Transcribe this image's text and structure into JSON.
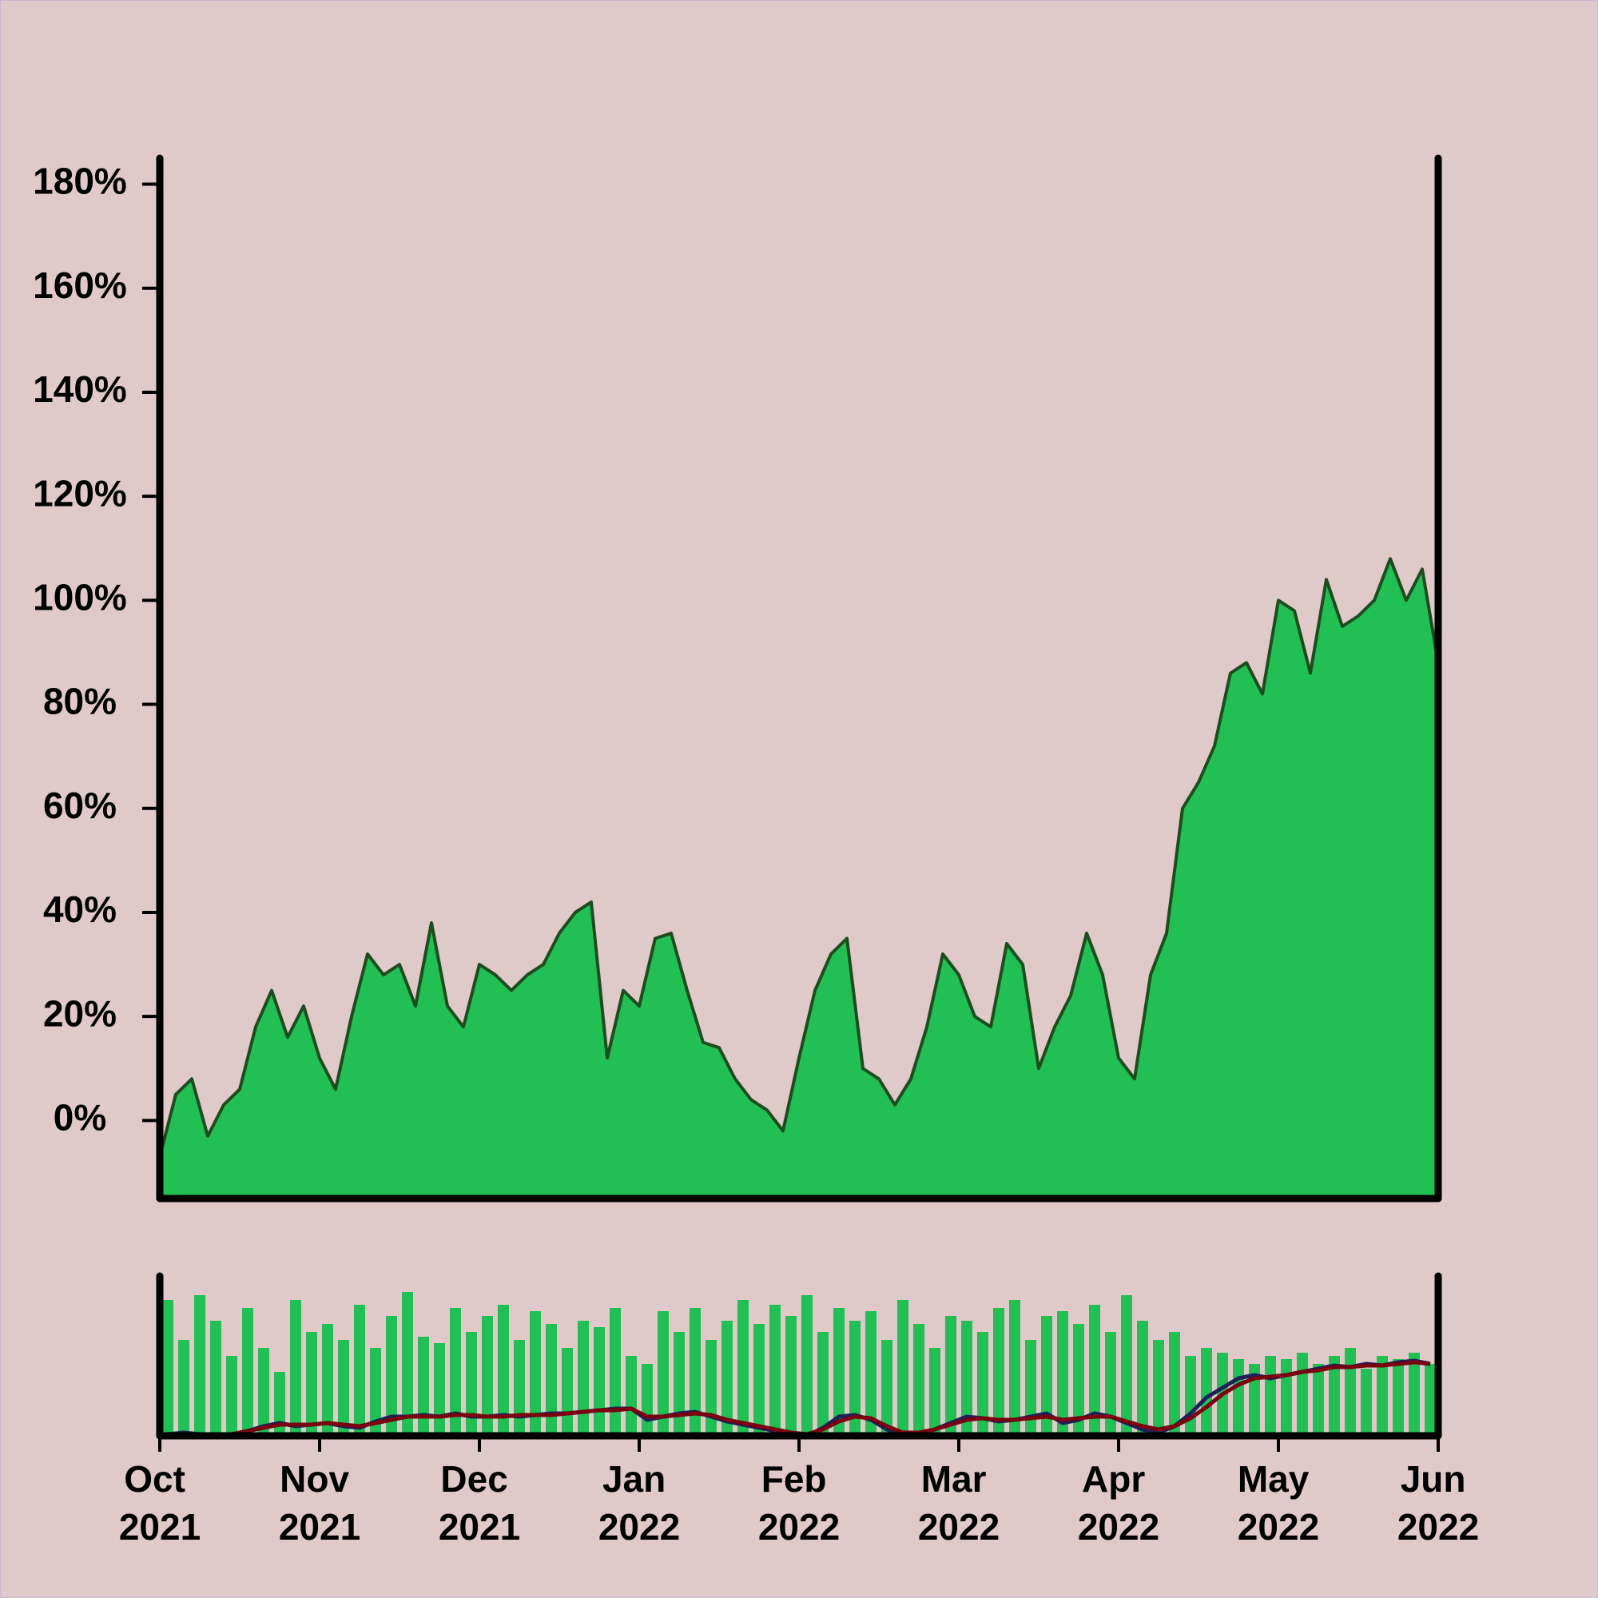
{
  "chart_data": [
    {
      "type": "area",
      "x": [
        0,
        0.1,
        0.2,
        0.3,
        0.4,
        0.5,
        0.6,
        0.7,
        0.8,
        0.9,
        1,
        1.1,
        1.2,
        1.3,
        1.4,
        1.5,
        1.6,
        1.7,
        1.8,
        1.9,
        2,
        2.1,
        2.2,
        2.3,
        2.4,
        2.5,
        2.6,
        2.7,
        2.8,
        2.9,
        3,
        3.1,
        3.2,
        3.3,
        3.4,
        3.5,
        3.6,
        3.7,
        3.8,
        3.9,
        4,
        4.1,
        4.2,
        4.3,
        4.4,
        4.5,
        4.6,
        4.7,
        4.8,
        4.9,
        5,
        5.1,
        5.2,
        5.3,
        5.4,
        5.5,
        5.6,
        5.7,
        5.8,
        5.9,
        6,
        6.1,
        6.2,
        6.3,
        6.4,
        6.5,
        6.6,
        6.7,
        6.8,
        6.9,
        7,
        7.1,
        7.2,
        7.3,
        7.4,
        7.5,
        7.6,
        7.7,
        7.8,
        7.9,
        8
      ],
      "values": [
        -7,
        5,
        8,
        -3,
        3,
        6,
        18,
        25,
        16,
        22,
        12,
        6,
        20,
        32,
        28,
        30,
        22,
        38,
        22,
        18,
        30,
        28,
        25,
        28,
        30,
        36,
        40,
        42,
        12,
        25,
        22,
        35,
        36,
        25,
        15,
        14,
        8,
        4,
        2,
        -2,
        12,
        25,
        32,
        35,
        10,
        8,
        3,
        8,
        18,
        32,
        28,
        20,
        18,
        34,
        30,
        10,
        18,
        24,
        36,
        28,
        12,
        8,
        28,
        36,
        60,
        65,
        72,
        86,
        88,
        82,
        100,
        98,
        86,
        104,
        95,
        97,
        100,
        108,
        100,
        106,
        88
      ],
      "color": "#22bf55",
      "line_color": "#1d4d1f",
      "xlim": [
        0,
        8
      ],
      "ylim": [
        -15,
        185
      ],
      "yticks": [
        {
          "value": 0,
          "label": "0%"
        },
        {
          "value": 20,
          "label": "20%"
        },
        {
          "value": 40,
          "label": "40%"
        },
        {
          "value": 60,
          "label": "60%"
        },
        {
          "value": 80,
          "label": "80%"
        },
        {
          "value": 100,
          "label": "100%"
        },
        {
          "value": 120,
          "label": "120%"
        },
        {
          "value": 140,
          "label": "140%"
        },
        {
          "value": 160,
          "label": "160%"
        },
        {
          "value": 180,
          "label": "180%"
        }
      ]
    },
    {
      "type": "bar",
      "x": [
        0.05,
        0.15,
        0.25,
        0.35,
        0.45,
        0.55,
        0.65,
        0.75,
        0.85,
        0.95,
        1.05,
        1.15,
        1.25,
        1.35,
        1.45,
        1.55,
        1.65,
        1.75,
        1.85,
        1.95,
        2.05,
        2.15,
        2.25,
        2.35,
        2.45,
        2.55,
        2.65,
        2.75,
        2.85,
        2.95,
        3.05,
        3.15,
        3.25,
        3.35,
        3.45,
        3.55,
        3.65,
        3.75,
        3.85,
        3.95,
        4.05,
        4.15,
        4.25,
        4.35,
        4.45,
        4.55,
        4.65,
        4.75,
        4.85,
        4.95,
        5.05,
        5.15,
        5.25,
        5.35,
        5.45,
        5.55,
        5.65,
        5.75,
        5.85,
        5.95,
        6.05,
        6.15,
        6.25,
        6.35,
        6.45,
        6.55,
        6.65,
        6.75,
        6.85,
        6.95,
        7.05,
        7.15,
        7.25,
        7.35,
        7.45,
        7.55,
        7.65,
        7.75,
        7.85,
        7.95
      ],
      "values": [
        85,
        60,
        88,
        72,
        50,
        80,
        55,
        40,
        85,
        65,
        70,
        60,
        82,
        55,
        75,
        90,
        62,
        58,
        80,
        65,
        75,
        82,
        60,
        78,
        70,
        55,
        72,
        68,
        80,
        50,
        45,
        78,
        65,
        80,
        60,
        72,
        85,
        70,
        82,
        75,
        88,
        65,
        80,
        72,
        78,
        60,
        85,
        70,
        55,
        75,
        72,
        65,
        80,
        85,
        60,
        75,
        78,
        70,
        82,
        65,
        88,
        72,
        60,
        65,
        50,
        55,
        52,
        48,
        45,
        50,
        48,
        52,
        45,
        50,
        55,
        42,
        50,
        48,
        52,
        45
      ],
      "color": "#22bf55",
      "series": [
        {
          "color": "#1f1f5a",
          "values": [
            1,
            2,
            1,
            0,
            1,
            3,
            6,
            8,
            6,
            7,
            8,
            6,
            5,
            9,
            12,
            12,
            13,
            12,
            14,
            12,
            12,
            13,
            12,
            13,
            14,
            14,
            15,
            16,
            17,
            17,
            10,
            12,
            14,
            15,
            12,
            9,
            7,
            5,
            3,
            1,
            0,
            5,
            12,
            13,
            10,
            4,
            0,
            1,
            4,
            8,
            12,
            11,
            9,
            10,
            12,
            14,
            8,
            10,
            14,
            12,
            8,
            4,
            2,
            6,
            14,
            24,
            30,
            36,
            38,
            36,
            38,
            40,
            42,
            44,
            43,
            45,
            44,
            46,
            47,
            45
          ]
        },
        {
          "color": "#7a0010",
          "values": [
            0,
            1,
            1,
            1,
            1,
            3,
            5,
            7,
            7,
            7,
            8,
            7,
            6,
            8,
            10,
            12,
            12,
            12,
            13,
            13,
            12,
            12,
            13,
            13,
            13,
            14,
            15,
            16,
            16,
            17,
            12,
            12,
            13,
            14,
            13,
            10,
            8,
            6,
            4,
            2,
            1,
            4,
            9,
            12,
            11,
            6,
            2,
            2,
            4,
            7,
            10,
            11,
            10,
            10,
            11,
            12,
            10,
            11,
            12,
            12,
            9,
            6,
            4,
            6,
            11,
            18,
            26,
            32,
            36,
            37,
            38,
            40,
            41,
            43,
            43,
            44,
            44,
            45,
            46,
            45
          ]
        }
      ],
      "xlim": [
        0,
        8
      ],
      "ylim": [
        0,
        100
      ],
      "xticks": [
        {
          "value": 0,
          "label": "Oct 2021"
        },
        {
          "value": 1,
          "label": "Nov 2021"
        },
        {
          "value": 2,
          "label": "Dec 2021"
        },
        {
          "value": 3,
          "label": "Jan 2022"
        },
        {
          "value": 4,
          "label": "Feb 2022"
        },
        {
          "value": 5,
          "label": "Mar 2022"
        },
        {
          "value": 6,
          "label": "Apr 2022"
        },
        {
          "value": 7,
          "label": "May 2022"
        },
        {
          "value": 8,
          "label": "Jun 2022"
        }
      ]
    }
  ]
}
